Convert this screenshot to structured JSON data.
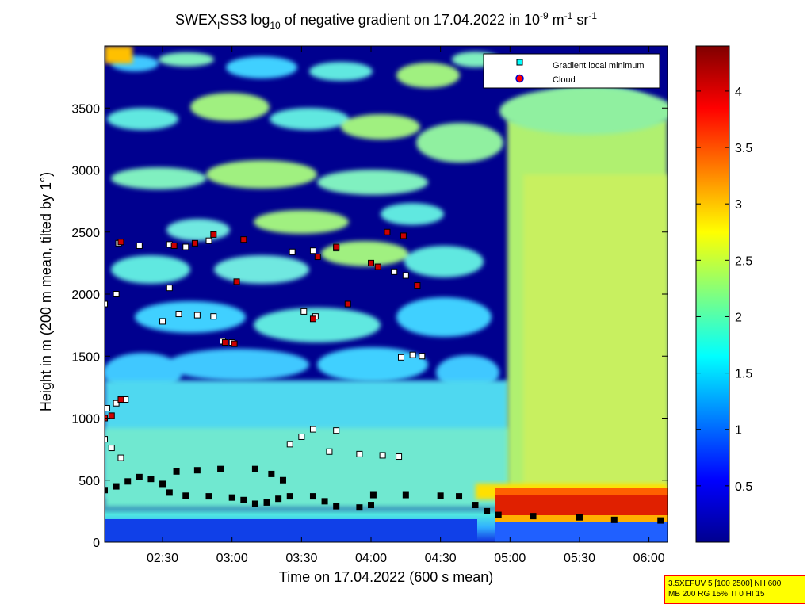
{
  "chart_data": {
    "type": "heatmap",
    "title": {
      "p1": "SWEX",
      "sub1": "I",
      "p2": "SS3 log",
      "sub2": "10",
      "p3": " of negative gradient on 17.04.2022 in 10",
      "sup1": "-9",
      "p4": " m",
      "sup2": "-1",
      "p5": " sr",
      "sup3": "-1"
    },
    "xlabel": "Time on 17.04.2022 (600 s mean)",
    "ylabel": "Height in m (200 m mean, tilted by 1°)",
    "xlim": [
      "02:05",
      "06:08"
    ],
    "ylim": [
      0,
      4000
    ],
    "x_ticks": [
      "02:30",
      "03:00",
      "03:30",
      "04:00",
      "04:30",
      "05:00",
      "05:30",
      "06:00"
    ],
    "y_ticks": [
      0,
      500,
      1000,
      1500,
      2000,
      2500,
      3000,
      3500
    ],
    "colorbar": {
      "range": [
        0,
        4.4
      ],
      "ticks": [
        "0.5",
        "1",
        "1.5",
        "2",
        "2.5",
        "3",
        "3.5",
        "4"
      ],
      "colormap": "jet"
    },
    "legend": {
      "position": "top-right",
      "entries": [
        {
          "label": "Gradient local minimum",
          "marker": "square",
          "color": "#00ffff"
        },
        {
          "label": "Cloud",
          "marker": "circle",
          "color": "#ff0000"
        }
      ]
    },
    "series": [
      {
        "name": "Gradient local minimum",
        "points": [
          [
            "02:05",
            420
          ],
          [
            "02:10",
            450
          ],
          [
            "02:15",
            490
          ],
          [
            "02:20",
            525
          ],
          [
            "02:25",
            510
          ],
          [
            "02:30",
            470
          ],
          [
            "02:33",
            400
          ],
          [
            "02:40",
            375
          ],
          [
            "02:50",
            370
          ],
          [
            "03:00",
            360
          ],
          [
            "03:05",
            340
          ],
          [
            "03:10",
            310
          ],
          [
            "03:15",
            320
          ],
          [
            "03:20",
            350
          ],
          [
            "03:25",
            370
          ],
          [
            "03:35",
            370
          ],
          [
            "03:40",
            330
          ],
          [
            "03:45",
            290
          ],
          [
            "03:55",
            280
          ],
          [
            "04:00",
            300
          ],
          [
            "04:01",
            380
          ],
          [
            "04:15",
            380
          ],
          [
            "04:30",
            375
          ],
          [
            "04:38",
            370
          ],
          [
            "04:45",
            300
          ],
          [
            "04:50",
            250
          ],
          [
            "04:55",
            220
          ],
          [
            "05:10",
            210
          ],
          [
            "05:30",
            200
          ],
          [
            "05:45",
            180
          ],
          [
            "06:05",
            175
          ],
          [
            "02:36",
            570
          ],
          [
            "02:45",
            580
          ],
          [
            "02:55",
            590
          ],
          [
            "03:10",
            590
          ],
          [
            "03:17",
            550
          ],
          [
            "03:22",
            500
          ],
          [
            "03:42",
            730
          ],
          [
            "03:55",
            710
          ],
          [
            "04:05",
            700
          ],
          [
            "04:12",
            690
          ],
          [
            "03:25",
            790
          ],
          [
            "03:30",
            850
          ],
          [
            "03:35",
            910
          ],
          [
            "03:45",
            900
          ],
          [
            "02:05",
            830
          ],
          [
            "02:08",
            760
          ],
          [
            "02:12",
            680
          ],
          [
            "02:06",
            1080
          ],
          [
            "02:10",
            1120
          ],
          [
            "02:14",
            1150
          ],
          [
            "02:37",
            1840
          ],
          [
            "02:45",
            1830
          ],
          [
            "02:52",
            1820
          ],
          [
            "02:56",
            1620
          ],
          [
            "03:00",
            1610
          ],
          [
            "03:31",
            1860
          ],
          [
            "03:36",
            1820
          ],
          [
            "04:13",
            1490
          ],
          [
            "04:18",
            1510
          ],
          [
            "04:22",
            1500
          ],
          [
            "02:11",
            2410
          ],
          [
            "02:20",
            2390
          ],
          [
            "02:33",
            2400
          ],
          [
            "02:40",
            2380
          ],
          [
            "02:50",
            2430
          ],
          [
            "03:26",
            2340
          ],
          [
            "03:35",
            2350
          ],
          [
            "03:45",
            2370
          ],
          [
            "04:10",
            2180
          ],
          [
            "04:15",
            2150
          ],
          [
            "02:10",
            2000
          ],
          [
            "02:05",
            1920
          ],
          [
            "02:33",
            2050
          ],
          [
            "02:30",
            1780
          ]
        ]
      },
      {
        "name": "Cloud",
        "points": [
          [
            "02:05",
            1000
          ],
          [
            "02:08",
            1020
          ],
          [
            "02:12",
            1150
          ],
          [
            "02:12",
            2420
          ],
          [
            "02:35",
            2390
          ],
          [
            "02:44",
            2410
          ],
          [
            "02:52",
            2480
          ],
          [
            "02:57",
            1610
          ],
          [
            "03:01",
            1600
          ],
          [
            "03:02",
            2100
          ],
          [
            "03:05",
            2440
          ],
          [
            "03:35",
            1800
          ],
          [
            "03:37",
            2300
          ],
          [
            "03:45",
            2380
          ],
          [
            "03:50",
            1920
          ],
          [
            "04:00",
            2250
          ],
          [
            "04:03",
            2220
          ],
          [
            "04:07",
            2500
          ],
          [
            "04:14",
            2470
          ],
          [
            "04:20",
            2070
          ]
        ]
      }
    ]
  },
  "info_box": {
    "line1": "3.5XEFUV 5 [100 2500] NH 600",
    "line2": "MB 200 RG 15% TI 0 HI 15"
  }
}
